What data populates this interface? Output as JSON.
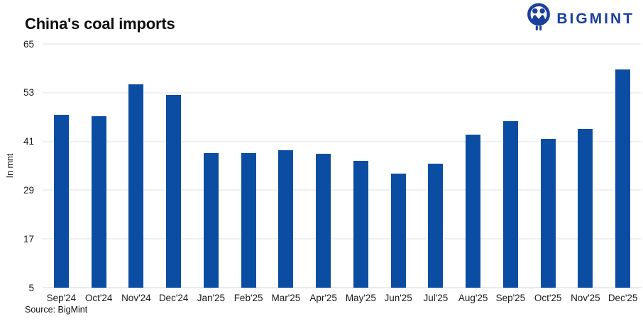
{
  "header": {
    "title": "China's coal imports",
    "logo_text": "BIGMINT"
  },
  "chart_data": {
    "type": "bar",
    "title": "China's coal imports",
    "categories": [
      "Sep'24",
      "Oct'24",
      "Nov'24",
      "Dec'24",
      "Jan'25",
      "Feb'25",
      "Mar'25",
      "Apr'25",
      "May'25",
      "Jun'25",
      "Jul'25",
      "Aug'25",
      "Sep'25",
      "Oct'25",
      "Nov'25",
      "Dec'25"
    ],
    "values": [
      47.5,
      47.2,
      55.0,
      52.5,
      38.2,
      38.1,
      38.9,
      38.0,
      36.2,
      33.0,
      35.5,
      42.7,
      46.0,
      41.7,
      44.0,
      58.8
    ],
    "ylabel": "In mnt",
    "xlabel": "",
    "ylim": [
      5,
      65
    ],
    "yticks": [
      5,
      17,
      29,
      41,
      53,
      65
    ],
    "grid": true,
    "legend_position": "none",
    "bar_color": "#0b4da2"
  },
  "footer": {
    "source": "Source: BigMint"
  },
  "colors": {
    "bar": "#0b4da2",
    "logo": "#1c3f9c",
    "grid": "#e2e2e2",
    "text": "#1a1a1a"
  }
}
